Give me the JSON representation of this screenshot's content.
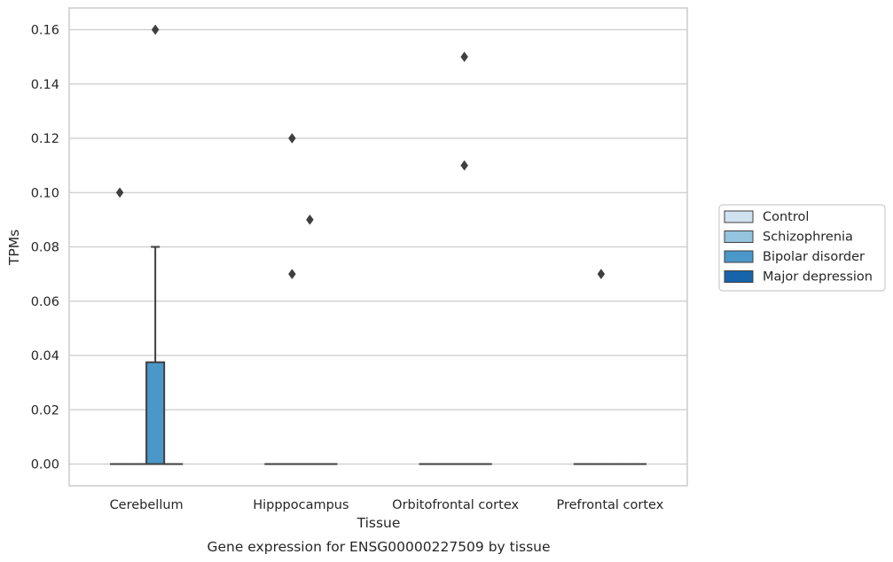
{
  "chart_data": {
    "type": "box",
    "title": "",
    "caption": "Gene expression for ENSG00000227509 by tissue",
    "xlabel": "Tissue",
    "ylabel": "TPMs",
    "ylim": [
      -0.008,
      0.168
    ],
    "yticks": [
      0.0,
      0.02,
      0.04,
      0.06,
      0.08,
      0.1,
      0.12,
      0.14,
      0.16
    ],
    "ytick_labels": [
      "0.00",
      "0.02",
      "0.04",
      "0.06",
      "0.08",
      "0.10",
      "0.12",
      "0.14",
      "0.16"
    ],
    "grid": true,
    "legend_position": "right",
    "categories": [
      "Cerebellum",
      "Hipppocampus",
      "Orbitofrontal cortex",
      "Prefrontal cortex"
    ],
    "series": [
      {
        "name": "Control",
        "color": "#d0e1f2",
        "boxes": [
          {
            "q1": 0.0,
            "median": 0.0,
            "q3": 0.0,
            "whisker_low": 0.0,
            "whisker_high": 0.0,
            "outliers": [
              0.1
            ]
          },
          {
            "q1": 0.0,
            "median": 0.0,
            "q3": 0.0,
            "whisker_low": 0.0,
            "whisker_high": 0.0,
            "outliers": []
          },
          {
            "q1": 0.0,
            "median": 0.0,
            "q3": 0.0,
            "whisker_low": 0.0,
            "whisker_high": 0.0,
            "outliers": []
          },
          {
            "q1": 0.0,
            "median": 0.0,
            "q3": 0.0,
            "whisker_low": 0.0,
            "whisker_high": 0.0,
            "outliers": []
          }
        ]
      },
      {
        "name": "Schizophrenia",
        "color": "#94c4df",
        "boxes": [
          {
            "q1": 0.0,
            "median": 0.0,
            "q3": 0.0,
            "whisker_low": 0.0,
            "whisker_high": 0.0,
            "outliers": []
          },
          {
            "q1": 0.0,
            "median": 0.0,
            "q3": 0.0,
            "whisker_low": 0.0,
            "whisker_high": 0.0,
            "outliers": [
              0.07,
              0.12
            ]
          },
          {
            "q1": 0.0,
            "median": 0.0,
            "q3": 0.0,
            "whisker_low": 0.0,
            "whisker_high": 0.0,
            "outliers": []
          },
          {
            "q1": 0.0,
            "median": 0.0,
            "q3": 0.0,
            "whisker_low": 0.0,
            "whisker_high": 0.0,
            "outliers": [
              0.07
            ]
          }
        ]
      },
      {
        "name": "Bipolar disorder",
        "color": "#4a98c9",
        "boxes": [
          {
            "q1": 0.0,
            "median": 0.0,
            "q3": 0.0375,
            "whisker_low": 0.0,
            "whisker_high": 0.08,
            "outliers": [
              0.16
            ]
          },
          {
            "q1": 0.0,
            "median": 0.0,
            "q3": 0.0,
            "whisker_low": 0.0,
            "whisker_high": 0.0,
            "outliers": [
              0.09
            ]
          },
          {
            "q1": 0.0,
            "median": 0.0,
            "q3": 0.0,
            "whisker_low": 0.0,
            "whisker_high": 0.0,
            "outliers": [
              0.11,
              0.15
            ]
          },
          {
            "q1": 0.0,
            "median": 0.0,
            "q3": 0.0,
            "whisker_low": 0.0,
            "whisker_high": 0.0,
            "outliers": []
          }
        ]
      },
      {
        "name": "Major depression",
        "color": "#1764ab",
        "boxes": [
          {
            "q1": 0.0,
            "median": 0.0,
            "q3": 0.0,
            "whisker_low": 0.0,
            "whisker_high": 0.0,
            "outliers": []
          },
          {
            "q1": 0.0,
            "median": 0.0,
            "q3": 0.0,
            "whisker_low": 0.0,
            "whisker_high": 0.0,
            "outliers": []
          },
          {
            "q1": 0.0,
            "median": 0.0,
            "q3": 0.0,
            "whisker_low": 0.0,
            "whisker_high": 0.0,
            "outliers": []
          },
          {
            "q1": 0.0,
            "median": 0.0,
            "q3": 0.0,
            "whisker_low": 0.0,
            "whisker_high": 0.0,
            "outliers": []
          }
        ]
      }
    ],
    "colors": {
      "grid": "#cccccc",
      "frame": "#cccccc",
      "edge": "#3f3f3f",
      "text": "#262626"
    }
  }
}
